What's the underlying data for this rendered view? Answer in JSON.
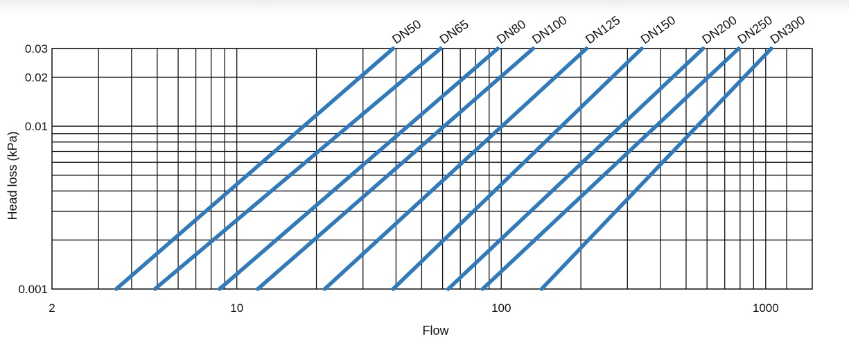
{
  "chart_data": {
    "type": "line",
    "title": "",
    "xlabel": "Flow",
    "ylabel": "Head loss (kPa)",
    "x_scale": "log",
    "y_scale": "log",
    "xlim": [
      2,
      1500
    ],
    "ylim": [
      0.001,
      0.03
    ],
    "x_ticks": [
      {
        "value": 2,
        "label": "2"
      },
      {
        "value": 10,
        "label": "10"
      },
      {
        "value": 100,
        "label": "100"
      },
      {
        "value": 1000,
        "label": "1000"
      }
    ],
    "y_ticks": [
      {
        "value": 0.001,
        "label": "0.001"
      },
      {
        "value": 0.01,
        "label": "0.01"
      },
      {
        "value": 0.02,
        "label": "0.02"
      },
      {
        "value": 0.03,
        "label": "0.03"
      }
    ],
    "x_gridlines": [
      3,
      4,
      5,
      6,
      7,
      8,
      9,
      10,
      20,
      30,
      40,
      50,
      60,
      70,
      80,
      90,
      100,
      200,
      300,
      400,
      500,
      600,
      700,
      800,
      900,
      1000,
      1200
    ],
    "y_gridlines": [
      0.002,
      0.003,
      0.004,
      0.005,
      0.006,
      0.007,
      0.008,
      0.009,
      0.01,
      0.02,
      0.03
    ],
    "grid": true,
    "line_color": "#2f79bd",
    "series": [
      {
        "name": "DN50",
        "x": [
          3.5,
          39
        ],
        "y": [
          0.001,
          0.03
        ]
      },
      {
        "name": "DN65",
        "x": [
          4.9,
          59
        ],
        "y": [
          0.001,
          0.03
        ]
      },
      {
        "name": "DN80",
        "x": [
          8.6,
          97
        ],
        "y": [
          0.001,
          0.03
        ]
      },
      {
        "name": "DN100",
        "x": [
          12,
          132
        ],
        "y": [
          0.001,
          0.03
        ]
      },
      {
        "name": "DN125",
        "x": [
          21.5,
          210
        ],
        "y": [
          0.001,
          0.03
        ]
      },
      {
        "name": "DN150",
        "x": [
          39,
          340
        ],
        "y": [
          0.001,
          0.03
        ]
      },
      {
        "name": "DN200",
        "x": [
          63,
          580
        ],
        "y": [
          0.001,
          0.03
        ]
      },
      {
        "name": "DN250",
        "x": [
          85,
          790
        ],
        "y": [
          0.001,
          0.03
        ]
      },
      {
        "name": "DN300",
        "x": [
          142,
          1050
        ],
        "y": [
          0.001,
          0.03
        ]
      }
    ]
  }
}
